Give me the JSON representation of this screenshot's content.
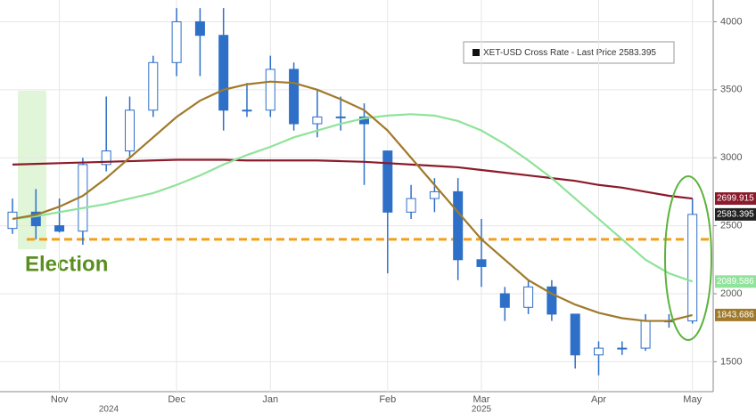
{
  "chart_data": {
    "type": "candlestick",
    "categories": [
      null,
      null,
      "Nov",
      null,
      null,
      null,
      null,
      "Dec",
      null,
      null,
      null,
      "Jan",
      null,
      null,
      null,
      null,
      "Feb",
      null,
      null,
      null,
      "Mar",
      null,
      null,
      null,
      null,
      "Apr",
      null,
      null,
      null,
      "May"
    ],
    "years": [
      "2024",
      "2025"
    ],
    "annotation": "Election",
    "series": [
      {
        "name": "XET-USD Cross Rate - Last Price",
        "type": "candlestick",
        "color": "#2e6fc7",
        "open": [
          2480,
          2600,
          2500,
          2460,
          2950,
          3050,
          3350,
          3700,
          4000,
          3900,
          3350,
          3350,
          3650,
          3250,
          3300,
          3300,
          3050,
          2600,
          2700,
          2750,
          2250,
          2000,
          1900,
          2050,
          1850,
          1550,
          1600,
          1600,
          1800,
          1800
        ],
        "high": [
          2700,
          2770,
          2700,
          3000,
          3450,
          3450,
          3750,
          4100,
          4100,
          4100,
          3550,
          3750,
          3700,
          3500,
          3450,
          3400,
          3050,
          2800,
          2850,
          2850,
          2550,
          2050,
          2100,
          2100,
          1850,
          1650,
          1650,
          1850,
          1850,
          2700
        ],
        "low": [
          2440,
          2400,
          2450,
          2360,
          2900,
          3000,
          3300,
          3600,
          3600,
          3200,
          3300,
          3300,
          3200,
          3150,
          3200,
          2800,
          2150,
          2550,
          2600,
          2100,
          2050,
          1800,
          1850,
          1800,
          1450,
          1400,
          1550,
          1580,
          1750,
          1780
        ],
        "close": [
          2600,
          2500,
          2460,
          2950,
          3050,
          3350,
          3700,
          4000,
          3900,
          3350,
          3350,
          3650,
          3250,
          3300,
          3300,
          3250,
          2600,
          2700,
          2750,
          2250,
          2200,
          1900,
          2050,
          1850,
          1550,
          1600,
          1600,
          1800,
          1800,
          2583.395
        ]
      },
      {
        "type": "line",
        "color": "#8b1a2b",
        "values": [
          2950,
          2955,
          2960,
          2965,
          2970,
          2975,
          2980,
          2985,
          2985,
          2985,
          2980,
          2980,
          2980,
          2980,
          2975,
          2970,
          2960,
          2950,
          2940,
          2930,
          2910,
          2890,
          2870,
          2850,
          2830,
          2800,
          2780,
          2750,
          2720,
          2699.915
        ]
      },
      {
        "type": "line",
        "color": "#8fe39a",
        "values": [
          2550,
          2570,
          2600,
          2630,
          2660,
          2700,
          2740,
          2800,
          2870,
          2950,
          3020,
          3080,
          3150,
          3200,
          3250,
          3290,
          3310,
          3320,
          3310,
          3270,
          3200,
          3100,
          2980,
          2850,
          2700,
          2550,
          2400,
          2250,
          2150,
          2089.586
        ]
      },
      {
        "type": "line",
        "color": "#a07a2a",
        "values": [
          2550,
          2580,
          2640,
          2720,
          2850,
          3000,
          3150,
          3300,
          3420,
          3500,
          3540,
          3560,
          3550,
          3500,
          3430,
          3350,
          3200,
          3000,
          2800,
          2600,
          2400,
          2250,
          2100,
          2000,
          1920,
          1860,
          1820,
          1800,
          1800,
          1843.686
        ]
      }
    ],
    "reference_line": 2400,
    "ylim": [
      1280,
      4160
    ],
    "yticks": [
      1500,
      2000,
      2500,
      3000,
      3500,
      4000
    ],
    "grid": true
  }
}
